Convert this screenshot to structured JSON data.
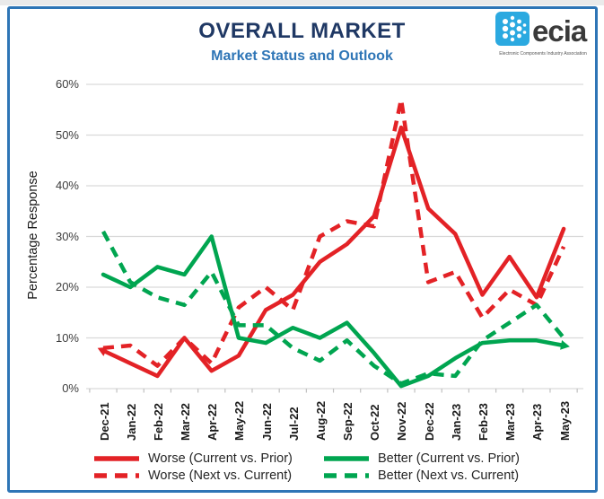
{
  "header": {
    "title": "OVERALL MARKET",
    "subtitle": "Market Status and Outlook"
  },
  "logo": {
    "text": "ecia",
    "tagline": "Electronic Components Industry Association",
    "icon": "ecia-dots-icon",
    "icon_color": "#2BA9E0"
  },
  "colors": {
    "frame_border": "#2E75B6",
    "title": "#1F3864",
    "subtitle": "#2E75B6",
    "grid": "#D9D9D9",
    "axis": "#C0C0C0",
    "worse_red": "#E32226",
    "better_green": "#00A550"
  },
  "chart_data": {
    "type": "line",
    "title": "OVERALL MARKET",
    "subtitle": "Market Status and Outlook",
    "xlabel": "",
    "ylabel": "Percentage Response",
    "ylim": [
      0,
      60
    ],
    "ytick_step": 10,
    "yticks": [
      "0%",
      "10%",
      "20%",
      "30%",
      "40%",
      "50%",
      "60%"
    ],
    "grid": true,
    "legend_position": "bottom",
    "categories": [
      "Dec-21",
      "Jan-22",
      "Feb-22",
      "Mar-22",
      "Apr-22",
      "May-22",
      "Jun-22",
      "Jul-22",
      "Aug-22",
      "Sep-22",
      "Oct-22",
      "Nov-22",
      "Dec-22",
      "Jan-23",
      "Feb-23",
      "Mar-23",
      "Apr-23",
      "May-23"
    ],
    "series": [
      {
        "id": "worse-current",
        "name": "Worse (Current vs. Prior)",
        "color": "#E32226",
        "style": "solid",
        "arrow": "start",
        "values": [
          7.5,
          5,
          2.5,
          10,
          3.5,
          6.5,
          15.5,
          18.5,
          25,
          28.5,
          34,
          51.5,
          35.5,
          30.5,
          18.5,
          26,
          18,
          31.5
        ]
      },
      {
        "id": "worse-next",
        "name": "Worse (Next vs. Current)",
        "color": "#E32226",
        "style": "dashed",
        "arrow": "none",
        "values": [
          8,
          8.5,
          4.5,
          10,
          5,
          16,
          20,
          15.5,
          30,
          33,
          32,
          57,
          21,
          23,
          14,
          19.5,
          16.5,
          28
        ]
      },
      {
        "id": "better-current",
        "name": "Better (Current vs. Prior)",
        "color": "#00A550",
        "style": "solid",
        "arrow": "end",
        "values": [
          22.5,
          20,
          24,
          22.5,
          30,
          10,
          9,
          12,
          10,
          13,
          7,
          0.5,
          2.5,
          6,
          9,
          9.5,
          9.5,
          8.5
        ]
      },
      {
        "id": "better-next",
        "name": "Better (Next vs. Current)",
        "color": "#00A550",
        "style": "dashed",
        "arrow": "none",
        "values": [
          31,
          21,
          18,
          16.5,
          23,
          12.5,
          12.5,
          8,
          5.5,
          9.5,
          4.5,
          1,
          3,
          2.5,
          9.5,
          13,
          16.5,
          10
        ]
      }
    ]
  }
}
